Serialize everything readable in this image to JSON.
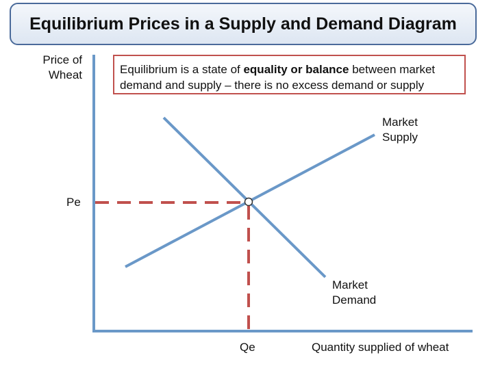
{
  "title": "Equilibrium Prices in a Supply and Demand Diagram",
  "note": {
    "part1": "Equilibrium is a state of ",
    "bold": "equality or balance",
    "part2": " between market demand and supply – there is no excess demand or supply"
  },
  "axes": {
    "y_label": "Price of Wheat",
    "x_label": "Quantity supplied of wheat",
    "price_marker": "Pe",
    "quantity_marker": "Qe"
  },
  "curves": {
    "supply_label": "Market Supply",
    "demand_label": "Market Demand"
  },
  "colors": {
    "curve": "#6a98c8",
    "axis": "#6a98c8",
    "guide": "#c0504d",
    "title_border": "#4a6a9a",
    "note_border": "#c0504d"
  }
}
